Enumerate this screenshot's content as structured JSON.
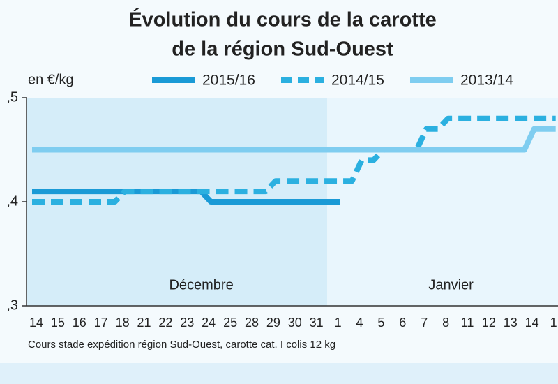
{
  "chart_data": {
    "type": "line",
    "title": "Évolution du cours de la carotte",
    "subtitle": "de la région Sud-Ouest",
    "y_label": "en €/kg",
    "note": "Cours stade expédition région Sud-Ouest, carotte cat. I colis 12 kg",
    "annotations": [
      "Décembre",
      "Janvier"
    ],
    "categories": [
      "14",
      "15",
      "16",
      "17",
      "18",
      "21",
      "22",
      "23",
      "24",
      "25",
      "28",
      "29",
      "30",
      "31",
      "1",
      "4",
      "5",
      "6",
      "7",
      "8",
      "11",
      "12",
      "13",
      "14",
      "1"
    ],
    "series": [
      {
        "name": "2015/16",
        "color": "#1a9ad6",
        "style": "solid",
        "values": [
          0.41,
          0.41,
          0.41,
          0.41,
          0.41,
          0.41,
          0.41,
          0.41,
          0.4,
          0.4,
          0.4,
          0.4,
          0.4,
          0.4,
          0.4,
          null,
          null,
          null,
          null,
          null,
          null,
          null,
          null,
          null,
          null
        ]
      },
      {
        "name": "2014/15",
        "color": "#2bb0e0",
        "style": "dashed",
        "values": [
          0.4,
          0.4,
          0.4,
          0.4,
          0.41,
          0.41,
          0.41,
          0.41,
          0.41,
          0.41,
          0.41,
          0.42,
          0.42,
          0.42,
          0.42,
          0.44,
          0.45,
          0.45,
          0.47,
          0.48,
          0.48,
          0.48,
          0.48,
          0.48,
          0.48
        ]
      },
      {
        "name": "2013/14",
        "color": "#7fcdf0",
        "style": "solid",
        "values": [
          0.45,
          0.45,
          0.45,
          0.45,
          0.45,
          0.45,
          0.45,
          0.45,
          0.45,
          0.45,
          0.45,
          0.45,
          0.45,
          0.45,
          0.45,
          0.45,
          0.45,
          0.45,
          0.45,
          0.45,
          0.45,
          0.45,
          0.45,
          0.47,
          0.47
        ]
      }
    ],
    "ylim": [
      0.3,
      0.5
    ],
    "yticks": [
      {
        "value": 0.3,
        "label": ",3"
      },
      {
        "value": 0.4,
        "label": ",4"
      },
      {
        "value": 0.5,
        "label": ",5"
      }
    ],
    "grid": false
  }
}
